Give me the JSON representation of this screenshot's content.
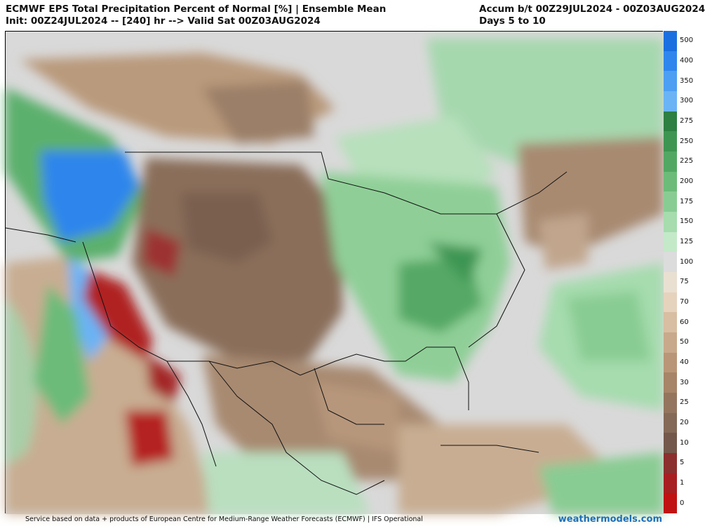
{
  "header": {
    "title": "ECMWF EPS Total Precipitation Percent of Normal [%] | Ensemble Mean",
    "init_line": "Init: 00Z24JUL2024 -- [240] hr --> Valid Sat 00Z03AUG2024",
    "accum_line": "Accum b/t 00Z29JUL2024 - 00Z03AUG2024",
    "days_line": "Days 5 to 10"
  },
  "colorbar": {
    "labels": [
      "500",
      "400",
      "350",
      "300",
      "275",
      "250",
      "225",
      "200",
      "175",
      "150",
      "125",
      "100",
      "75",
      "70",
      "60",
      "50",
      "40",
      "30",
      "25",
      "20",
      "10",
      "5",
      "1",
      "0"
    ],
    "colors": [
      "#1a6fe0",
      "#2f86ec",
      "#4c9ff2",
      "#6ab3f5",
      "#2d7f42",
      "#3e9552",
      "#52a863",
      "#6cbb79",
      "#89cc93",
      "#a6dcae",
      "#c4e9c9",
      "#dcdcdc",
      "#e9e0d2",
      "#e6d3bd",
      "#d8bea2",
      "#c8a98b",
      "#b99677",
      "#a68568",
      "#94765f",
      "#846a57",
      "#74584b",
      "#8c2f2f",
      "#a81f22",
      "#c01212"
    ]
  },
  "footer": {
    "credit": "Service based on data + products of European Centre for Medium-Range Weather Forecasts (ECMWF) | IFS Operational",
    "brand": "weathermodels.com"
  }
}
